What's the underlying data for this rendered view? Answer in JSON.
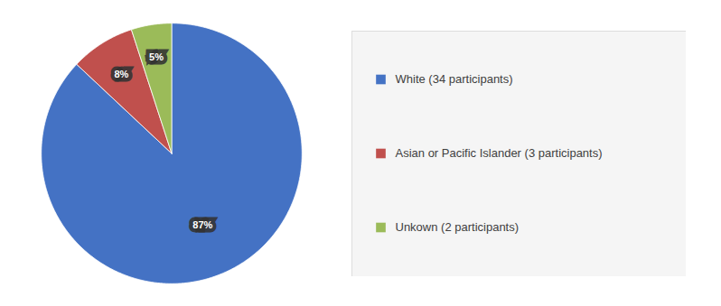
{
  "chart_data": {
    "type": "pie",
    "categories": [
      "White (34 participants)",
      "Asian or Pacific Islander (3 participants)",
      "Unkown (2 participants)"
    ],
    "values": [
      87,
      8,
      5
    ],
    "value_labels": [
      "87%",
      "8%",
      "5%"
    ],
    "colors": [
      "#4472C4",
      "#C0504D",
      "#9BBB59"
    ],
    "data_labels": true,
    "legend": "right"
  }
}
